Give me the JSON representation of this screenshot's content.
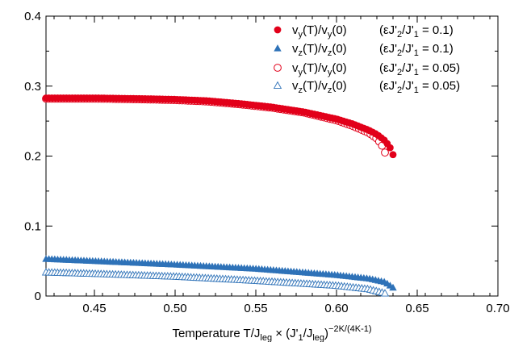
{
  "chart_data": {
    "type": "scatter",
    "xlabel": "Temperature T/J_leg × (J'_1/J_leg)^(−2K/(4K−1))",
    "ylabel": "",
    "xlim": [
      0.42,
      0.7
    ],
    "ylim": [
      0.0,
      0.4
    ],
    "x_ticks": [
      "0.45",
      "0.50",
      "0.55",
      "0.60",
      "0.65",
      "0.70"
    ],
    "y_ticks": [
      "0",
      "0.1",
      "0.2",
      "0.3",
      "0.4"
    ],
    "grid": false,
    "legend_position": "top-right",
    "series": [
      {
        "name": "v_y(T)/v_y(0) (εJ'_2/J'_1 = 0.1)",
        "legend_main": "vy(T)/vy(0)",
        "legend_param": "(εJ'2/J'1 = 0.1)",
        "marker": "filled-circle",
        "color": "#e2001a",
        "x": [
          0.42,
          0.45,
          0.48,
          0.5,
          0.52,
          0.54,
          0.56,
          0.58,
          0.6,
          0.61,
          0.62,
          0.625,
          0.63,
          0.633,
          0.635
        ],
        "y": [
          0.283,
          0.283,
          0.282,
          0.281,
          0.279,
          0.275,
          0.27,
          0.263,
          0.253,
          0.246,
          0.237,
          0.231,
          0.222,
          0.213,
          0.202
        ]
      },
      {
        "name": "v_z(T)/v_z(0) (εJ'_2/J'_1 = 0.1)",
        "legend_main": "vz(T)/vz(0)",
        "legend_param": "(εJ'2/J'1 = 0.1)",
        "marker": "filled-triangle",
        "color": "#2e72b8",
        "x": [
          0.42,
          0.45,
          0.5,
          0.55,
          0.6,
          0.62,
          0.63,
          0.635
        ],
        "y": [
          0.053,
          0.05,
          0.045,
          0.039,
          0.03,
          0.025,
          0.02,
          0.012
        ]
      },
      {
        "name": "v_y(T)/v_y(0) (εJ'_2/J'_1 = 0.05)",
        "legend_main": "vy(T)/vy(0)",
        "legend_param": "(εJ'2/J'1 = 0.05)",
        "marker": "open-circle",
        "color": "#e2001a",
        "x": [
          0.42,
          0.45,
          0.48,
          0.5,
          0.52,
          0.54,
          0.56,
          0.58,
          0.6,
          0.61,
          0.62,
          0.625,
          0.628,
          0.63
        ],
        "y": [
          0.282,
          0.282,
          0.281,
          0.28,
          0.278,
          0.274,
          0.269,
          0.262,
          0.251,
          0.243,
          0.233,
          0.225,
          0.216,
          0.205
        ]
      },
      {
        "name": "v_z(T)/v_z(0) (εJ'_2/J'_1 = 0.05)",
        "legend_main": "vz(T)/vz(0)",
        "legend_param": "(εJ'2/J'1 = 0.05)",
        "marker": "open-triangle",
        "color": "#2e72b8",
        "x": [
          0.42,
          0.45,
          0.5,
          0.55,
          0.6,
          0.62,
          0.63
        ],
        "y": [
          0.034,
          0.032,
          0.028,
          0.022,
          0.015,
          0.01,
          0.004
        ]
      }
    ]
  }
}
